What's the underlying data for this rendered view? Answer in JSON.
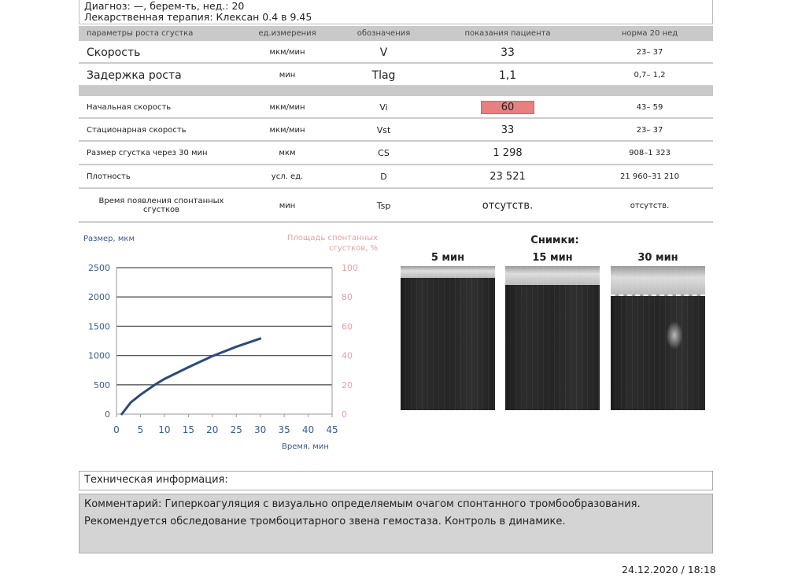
{
  "header": {
    "diagnosis": "Диагноз: —, берем-ть, нед.: 20",
    "therapy": "Лекарственная терапия: Клексан 0.4 в 9.45"
  },
  "table": {
    "columns": [
      "параметры роста сгустка",
      "ед.измерения",
      "обозначения",
      "показания пациента",
      "норма 20 нед"
    ],
    "main_rows": [
      {
        "param": "Скорость",
        "unit": "мкм/мин",
        "symbol": "V",
        "value": "33",
        "norm": "23– 37"
      },
      {
        "param": "Задержка роста",
        "unit": "мин",
        "symbol": "Tlag",
        "value": "1,1",
        "norm": "0,7– 1,2"
      }
    ],
    "rows": [
      {
        "param": "Начальная скорость",
        "unit": "мкм/мин",
        "symbol": "Vi",
        "value": "60",
        "norm": "43– 59",
        "highlight": true
      },
      {
        "param": "Стационарная скорость",
        "unit": "мкм/мин",
        "symbol": "Vst",
        "value": "33",
        "norm": "23– 37"
      },
      {
        "param": "Размер сгустка через 30 мин",
        "unit": "мкм",
        "symbol": "CS",
        "value": "1 298",
        "norm": "908–1 323"
      },
      {
        "param": "Плотность",
        "unit": "усл. ед.",
        "symbol": "D",
        "value": "23 521",
        "norm": "21 960–31 210"
      },
      {
        "param": "Время появления спонтанных сгустков",
        "unit": "мин",
        "symbol": "Tsp",
        "value": "отсутств.",
        "norm": "отсутств."
      }
    ],
    "highlight_color": "#e88080"
  },
  "chart_data": {
    "type": "line",
    "ylabel": "Размер, мкм",
    "y2label": "Площадь спонтанных сгустков, %",
    "xlabel": "Время, мин",
    "xlim": [
      0,
      45
    ],
    "ylim": [
      0,
      2500
    ],
    "y2lim": [
      0,
      100
    ],
    "xticks": [
      "0",
      "5",
      "10",
      "15",
      "20",
      "25",
      "30",
      "35",
      "40",
      "45"
    ],
    "yticks": [
      "0",
      "500",
      "1000",
      "1500",
      "2000",
      "2500"
    ],
    "y2ticks": [
      "0",
      "20",
      "40",
      "60",
      "80",
      "100"
    ],
    "grid": true,
    "series": [
      {
        "color": "#2b4a7e",
        "x": [
          1.1,
          3,
          5,
          8,
          10,
          15,
          20,
          25,
          30
        ],
        "y": [
          0,
          200,
          330,
          500,
          600,
          800,
          990,
          1150,
          1290
        ]
      }
    ]
  },
  "images": {
    "title": "Снимки:",
    "labels": [
      "5 мин",
      "15 мин",
      "30 мин"
    ]
  },
  "tech": {
    "title": "Техническая информация:",
    "comment": "Комментарий: Гиперкоагуляция с визуально определяемым очагом спонтанного тромбообразования. Рекомендуется обследование тромбоцитарного звена гемостаза. Контроль в динамике."
  },
  "footer": {
    "datetime": "24.12.2020 / 18:18"
  }
}
